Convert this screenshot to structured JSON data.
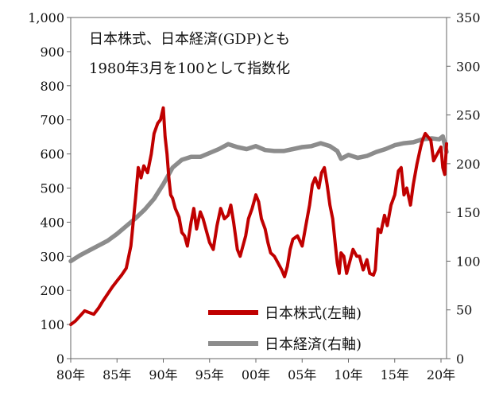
{
  "chart_data": {
    "type": "line",
    "annotation": [
      "日本株式、日本経済(GDP)とも",
      "1980年3月を100として指数化"
    ],
    "x_ticks": [
      "80年",
      "85年",
      "90年",
      "95年",
      "00年",
      "05年",
      "10年",
      "15年",
      "20年"
    ],
    "x_range": [
      1980,
      2020.6
    ],
    "y_left": {
      "range": [
        0,
        1000
      ],
      "ticks": [
        "0",
        "100",
        "200",
        "300",
        "400",
        "500",
        "600",
        "700",
        "800",
        "900",
        "1,000"
      ]
    },
    "y_right": {
      "range": [
        0,
        350
      ],
      "ticks": [
        "0",
        "50",
        "100",
        "150",
        "200",
        "250",
        "300",
        "350"
      ]
    },
    "legend_position": "bottom-right",
    "series": [
      {
        "name": "日本株式(左軸)",
        "axis": "left",
        "color": "#c00000",
        "x": [
          1980.0,
          1980.5,
          1981.0,
          1981.5,
          1982.0,
          1982.5,
          1983.0,
          1983.5,
          1984.0,
          1984.5,
          1985.0,
          1985.5,
          1986.0,
          1986.5,
          1987.0,
          1987.3,
          1987.6,
          1987.9,
          1988.3,
          1988.7,
          1989.0,
          1989.4,
          1989.7,
          1990.0,
          1990.2,
          1990.4,
          1990.6,
          1990.8,
          1991.0,
          1991.3,
          1991.7,
          1992.0,
          1992.3,
          1992.6,
          1993.0,
          1993.3,
          1993.6,
          1994.0,
          1994.3,
          1994.6,
          1995.0,
          1995.4,
          1995.8,
          1996.2,
          1996.6,
          1997.0,
          1997.3,
          1997.6,
          1998.0,
          1998.3,
          1998.6,
          1998.9,
          1999.2,
          1999.6,
          2000.0,
          2000.3,
          2000.6,
          2001.0,
          2001.3,
          2001.6,
          2002.0,
          2002.4,
          2002.8,
          2003.1,
          2003.4,
          2003.7,
          2004.0,
          2004.5,
          2005.0,
          2005.4,
          2005.8,
          2006.1,
          2006.4,
          2006.8,
          2007.1,
          2007.4,
          2007.7,
          2008.0,
          2008.3,
          2008.6,
          2008.8,
          2009.0,
          2009.2,
          2009.5,
          2009.8,
          2010.1,
          2010.5,
          2010.9,
          2011.2,
          2011.6,
          2012.0,
          2012.3,
          2012.7,
          2012.9,
          2013.2,
          2013.5,
          2013.9,
          2014.2,
          2014.6,
          2015.0,
          2015.4,
          2015.7,
          2016.0,
          2016.3,
          2016.7,
          2017.0,
          2017.4,
          2017.8,
          2018.0,
          2018.3,
          2018.6,
          2018.9,
          2019.2,
          2019.6,
          2020.0,
          2020.2,
          2020.4,
          2020.6
        ],
        "y": [
          100,
          110,
          125,
          140,
          135,
          130,
          148,
          170,
          190,
          210,
          228,
          245,
          265,
          330,
          470,
          560,
          530,
          565,
          545,
          600,
          660,
          690,
          700,
          735,
          650,
          600,
          530,
          480,
          470,
          440,
          415,
          370,
          360,
          330,
          400,
          440,
          380,
          430,
          410,
          380,
          340,
          320,
          390,
          440,
          410,
          420,
          450,
          400,
          320,
          300,
          330,
          360,
          410,
          440,
          480,
          460,
          410,
          380,
          340,
          310,
          300,
          280,
          260,
          240,
          270,
          320,
          350,
          360,
          330,
          390,
          450,
          510,
          530,
          500,
          545,
          560,
          510,
          450,
          410,
          330,
          280,
          250,
          310,
          300,
          250,
          280,
          320,
          300,
          300,
          260,
          290,
          250,
          245,
          260,
          380,
          370,
          420,
          390,
          450,
          480,
          550,
          560,
          480,
          500,
          450,
          510,
          570,
          620,
          640,
          660,
          650,
          640,
          580,
          600,
          620,
          560,
          540,
          630
        ]
      },
      {
        "name": "日本経済(右軸)",
        "axis": "right",
        "color": "#8c8c8c",
        "x": [
          1980.0,
          1981.0,
          1982.0,
          1983.0,
          1984.0,
          1985.0,
          1986.0,
          1987.0,
          1988.0,
          1989.0,
          1990.0,
          1991.0,
          1992.0,
          1993.0,
          1994.0,
          1995.0,
          1996.0,
          1997.0,
          1998.0,
          1999.0,
          2000.0,
          2001.0,
          2002.0,
          2003.0,
          2004.0,
          2005.0,
          2006.0,
          2007.0,
          2008.0,
          2008.8,
          2009.2,
          2010.0,
          2011.0,
          2012.0,
          2013.0,
          2014.0,
          2015.0,
          2016.0,
          2017.0,
          2018.0,
          2019.0,
          2019.8,
          2020.2,
          2020.6
        ],
        "y": [
          100,
          106,
          111,
          116,
          121,
          128,
          136,
          144,
          153,
          164,
          179,
          196,
          204,
          207,
          207,
          211,
          215,
          220,
          217,
          215,
          218,
          214,
          213,
          213,
          215,
          217,
          218,
          221,
          218,
          213,
          205,
          209,
          206,
          208,
          212,
          215,
          219,
          221,
          222,
          225,
          226,
          225,
          228,
          212
        ]
      }
    ]
  }
}
